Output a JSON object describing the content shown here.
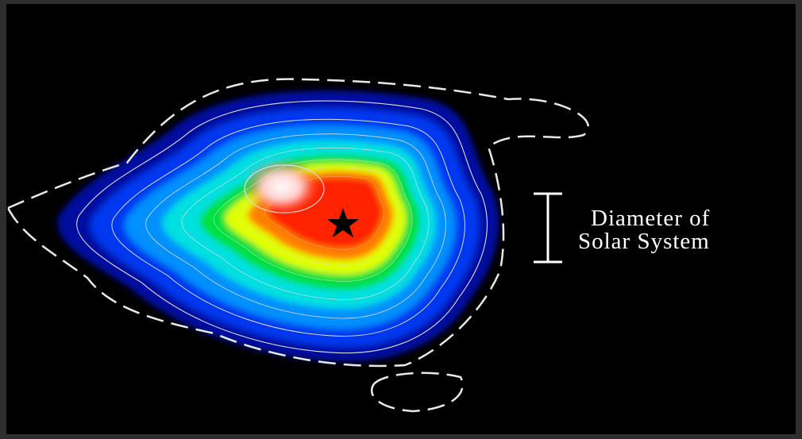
{
  "label": {
    "line1": "Diameter of",
    "line2": "Solar System"
  }
}
